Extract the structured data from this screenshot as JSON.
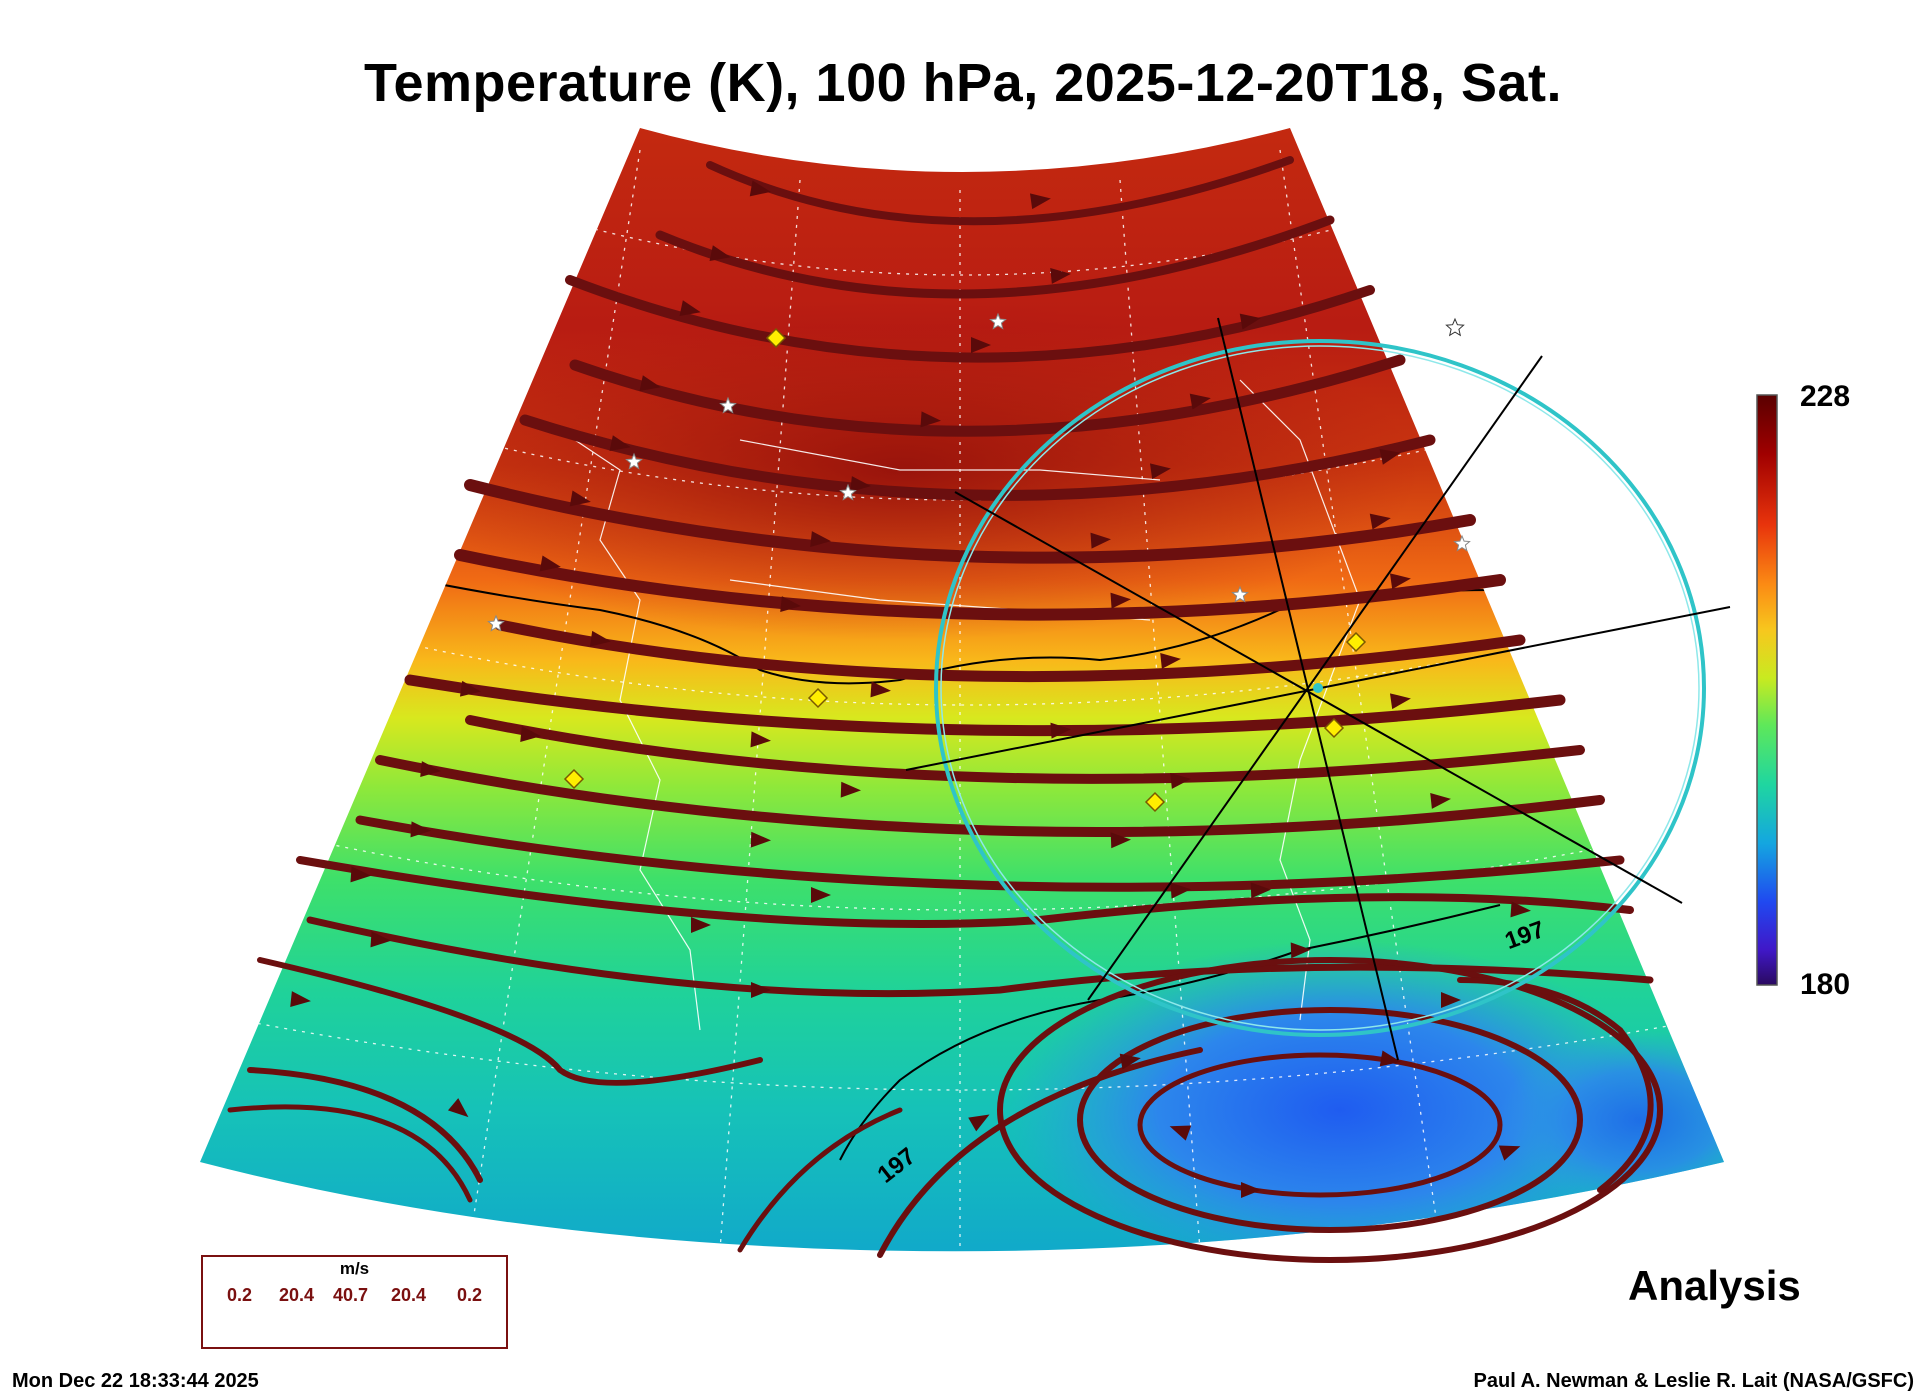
{
  "title": "Temperature (K), 100 hPa, 2025-12-20T18, Sat.",
  "colorbar": {
    "max_label": "228",
    "min_label": "180"
  },
  "contour_labels": [
    "197",
    "197"
  ],
  "legend": {
    "units": "m/s",
    "values": [
      "0.2",
      "20.4",
      "40.7",
      "20.4",
      "0.2"
    ]
  },
  "analysis_label": "Analysis",
  "footer": {
    "timestamp": "Mon Dec 22 18:33:44 2025",
    "credit": "Paul A. Newman & Leslie R. Lait (NASA/GSFC)"
  },
  "colors": {
    "streamline": "#6b0f0f",
    "ring": "#2fc4c8",
    "marker_diamond": "#ffee00"
  }
}
